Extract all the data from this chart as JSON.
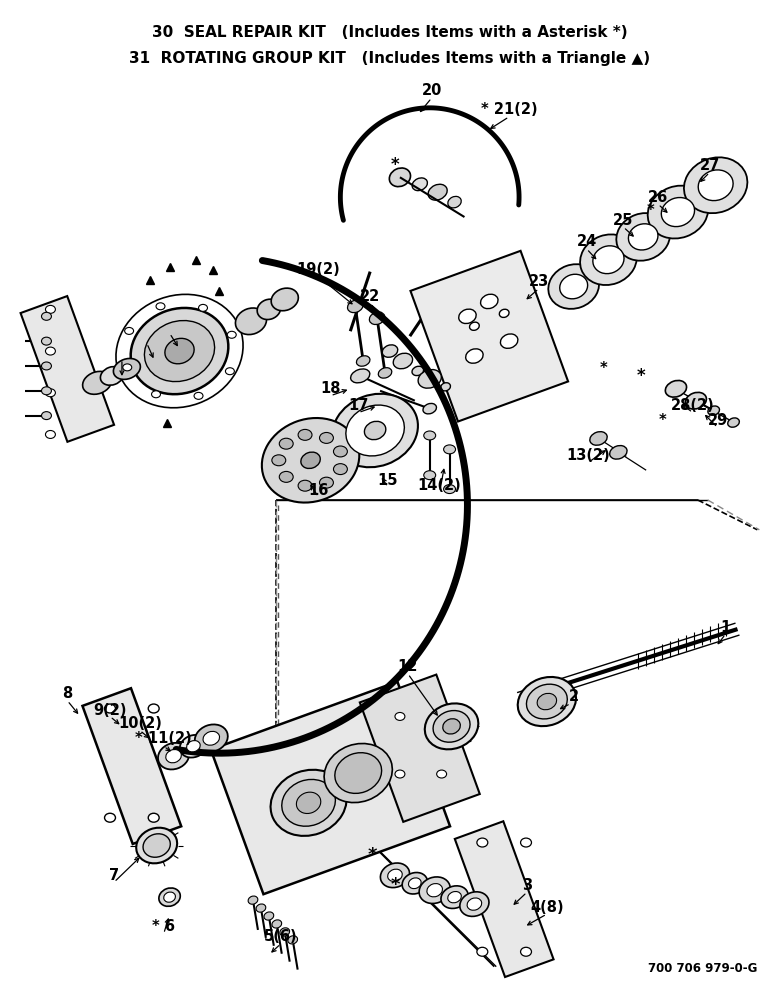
{
  "title_line1": "30  SEAL REPAIR KIT   (Includes Items with a Asterisk *)",
  "title_line2": "31  ROTATING GROUP KIT   (Includes Items with a Triangle ▲)",
  "part_number": "700 706 979-0-G",
  "background_color": "#ffffff",
  "line_color": "#000000"
}
